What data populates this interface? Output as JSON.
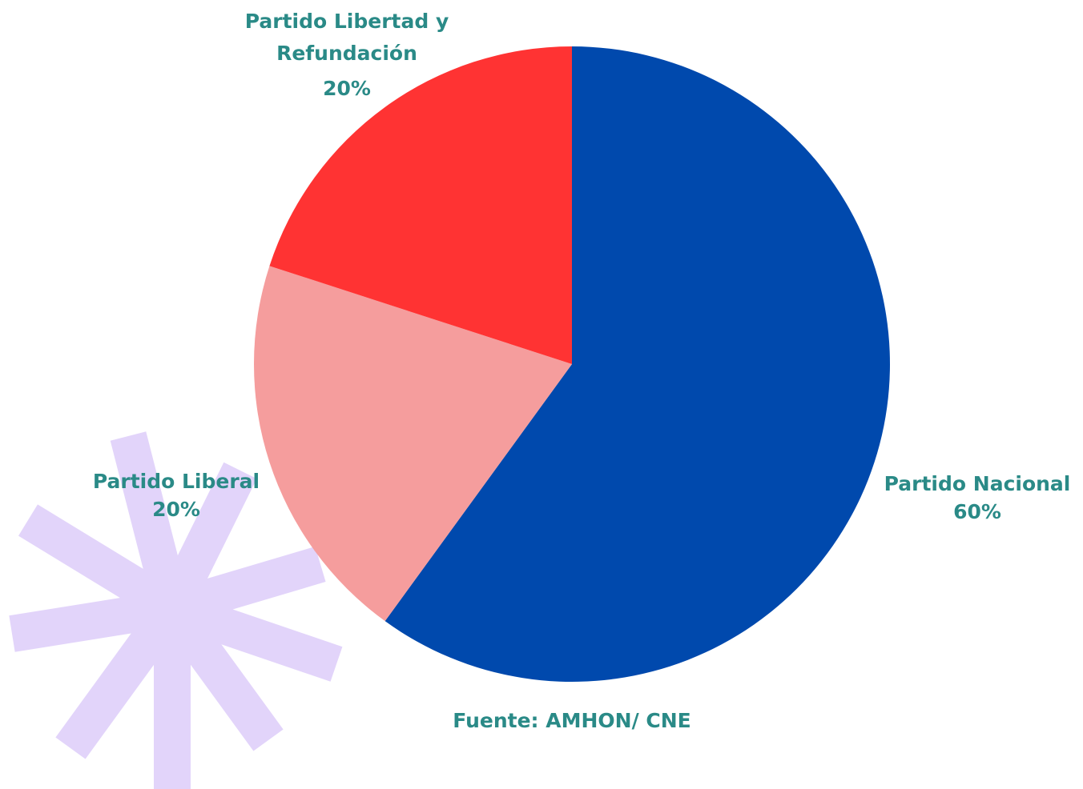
{
  "chart_data": {
    "type": "pie",
    "categories": [
      "Partido Nacional",
      "Partido Liberal",
      "Partido Libertad y Refundación"
    ],
    "values": [
      60,
      20,
      20
    ],
    "value_labels": [
      "60%",
      "20%",
      "20%"
    ],
    "colors": [
      "#0049ad",
      "#f59d9d",
      "#ff3333"
    ],
    "source": "Fuente: AMHON/ CNE"
  }
}
